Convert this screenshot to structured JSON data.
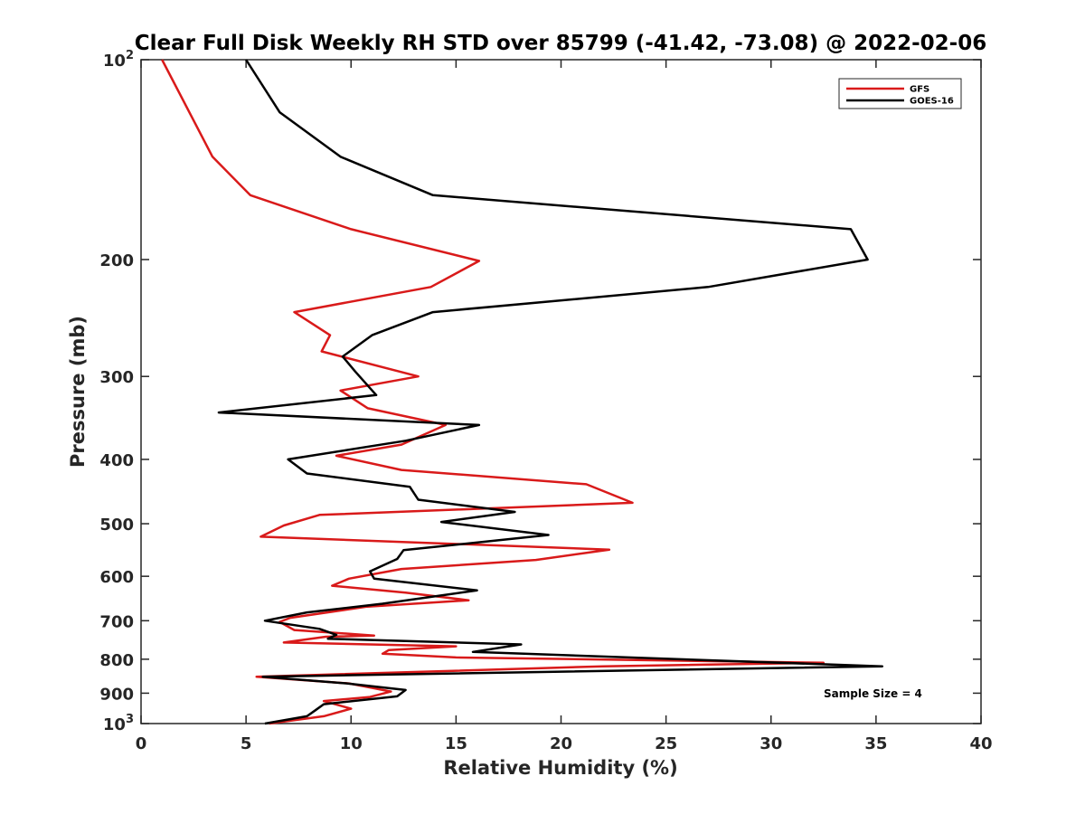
{
  "chart_data": {
    "type": "line",
    "title": "Clear Full Disk Weekly RH STD over 85799 (-41.42, -73.08) @ 2022-02-06",
    "xlabel": "Relative Humidity (%)",
    "ylabel": "Pressure (mb)",
    "xlim": [
      0,
      40
    ],
    "ylim": [
      100,
      1000
    ],
    "y_scale": "log",
    "y_reversed": true,
    "x_ticks": [
      0,
      5,
      10,
      15,
      20,
      25,
      30,
      35,
      40
    ],
    "x_tick_labels": [
      "0",
      "5",
      "10",
      "15",
      "20",
      "25",
      "30",
      "35",
      "40"
    ],
    "y_ticks": [
      100,
      200,
      300,
      400,
      500,
      600,
      700,
      800,
      900,
      1000
    ],
    "y_tick_labels": [
      {
        "base": "10",
        "exp": "2"
      },
      {
        "base": "200",
        "exp": ""
      },
      {
        "base": "300",
        "exp": ""
      },
      {
        "base": "400",
        "exp": ""
      },
      {
        "base": "500",
        "exp": ""
      },
      {
        "base": "600",
        "exp": ""
      },
      {
        "base": "700",
        "exp": ""
      },
      {
        "base": "800",
        "exp": ""
      },
      {
        "base": "900",
        "exp": ""
      },
      {
        "base": "10",
        "exp": "3"
      }
    ],
    "grid": false,
    "legend_position": "top-right",
    "annotation": "Sample Size = 4",
    "series": [
      {
        "name": "GFS",
        "color": "#d91a1a",
        "points": [
          [
            1.0,
            100
          ],
          [
            3.4,
            140
          ],
          [
            5.2,
            160
          ],
          [
            10.0,
            180
          ],
          [
            16.1,
            201
          ],
          [
            13.8,
            220
          ],
          [
            7.3,
            240
          ],
          [
            9.0,
            260
          ],
          [
            8.6,
            275
          ],
          [
            13.2,
            300
          ],
          [
            9.5,
            315
          ],
          [
            10.8,
            335
          ],
          [
            14.5,
            355
          ],
          [
            12.4,
            380
          ],
          [
            9.3,
            395
          ],
          [
            12.4,
            415
          ],
          [
            21.2,
            436
          ],
          [
            23.4,
            465
          ],
          [
            8.5,
            485
          ],
          [
            6.8,
            503
          ],
          [
            5.7,
            523
          ],
          [
            22.3,
            547
          ],
          [
            18.8,
            567
          ],
          [
            12.4,
            585
          ],
          [
            9.9,
            605
          ],
          [
            9.1,
            620
          ],
          [
            12.6,
            635
          ],
          [
            15.6,
            652
          ],
          [
            10.7,
            667
          ],
          [
            7.1,
            693
          ],
          [
            6.6,
            703
          ],
          [
            7.3,
            723
          ],
          [
            11.1,
            737
          ],
          [
            8.8,
            740
          ],
          [
            6.8,
            755
          ],
          [
            15.0,
            765
          ],
          [
            11.8,
            775
          ],
          [
            11.5,
            785
          ],
          [
            15.0,
            795
          ],
          [
            32.5,
            810
          ],
          [
            22.0,
            820
          ],
          [
            5.5,
            850
          ],
          [
            9.9,
            870
          ],
          [
            11.9,
            895
          ],
          [
            10.9,
            912
          ],
          [
            8.7,
            925
          ],
          [
            10.0,
            950
          ],
          [
            8.7,
            975
          ],
          [
            6.1,
            1000
          ]
        ]
      },
      {
        "name": "GOES-16",
        "color": "#000000",
        "points": [
          [
            5.0,
            100
          ],
          [
            6.6,
            120
          ],
          [
            9.5,
            140
          ],
          [
            13.9,
            160
          ],
          [
            33.8,
            180
          ],
          [
            34.6,
            200
          ],
          [
            27.0,
            220
          ],
          [
            13.9,
            240
          ],
          [
            11.0,
            260
          ],
          [
            9.6,
            280
          ],
          [
            10.2,
            295
          ],
          [
            11.2,
            320
          ],
          [
            3.7,
            340
          ],
          [
            16.1,
            355
          ],
          [
            12.6,
            375
          ],
          [
            7.0,
            400
          ],
          [
            7.9,
            420
          ],
          [
            12.8,
            440
          ],
          [
            13.2,
            460
          ],
          [
            17.8,
            480
          ],
          [
            14.3,
            497
          ],
          [
            19.4,
            520
          ],
          [
            12.5,
            548
          ],
          [
            12.2,
            565
          ],
          [
            10.9,
            590
          ],
          [
            11.1,
            605
          ],
          [
            16.0,
            630
          ],
          [
            11.5,
            660
          ],
          [
            7.9,
            680
          ],
          [
            5.9,
            700
          ],
          [
            8.5,
            720
          ],
          [
            9.3,
            735
          ],
          [
            8.9,
            745
          ],
          [
            18.1,
            760
          ],
          [
            15.8,
            780
          ],
          [
            35.3,
            820
          ],
          [
            5.8,
            850
          ],
          [
            9.8,
            870
          ],
          [
            12.6,
            890
          ],
          [
            12.2,
            910
          ],
          [
            8.7,
            935
          ],
          [
            8.3,
            955
          ],
          [
            7.9,
            975
          ],
          [
            5.9,
            1000
          ]
        ]
      }
    ]
  }
}
